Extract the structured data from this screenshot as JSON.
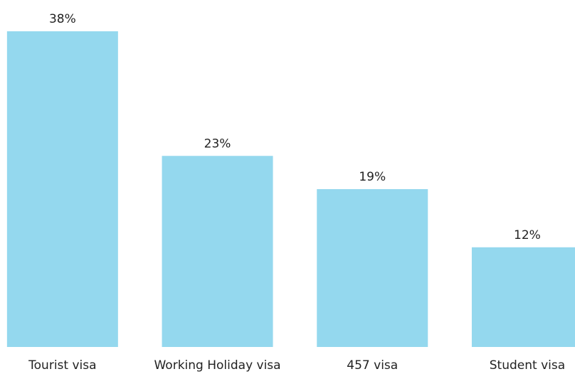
{
  "chart_data": {
    "type": "bar",
    "categories": [
      "Tourist visa",
      "Working Holiday visa",
      "457 visa",
      "Student visa"
    ],
    "values": [
      38,
      23,
      19,
      12
    ],
    "value_labels": [
      "38%",
      "23%",
      "19%",
      "12%"
    ],
    "color": "#94d8ee"
  }
}
